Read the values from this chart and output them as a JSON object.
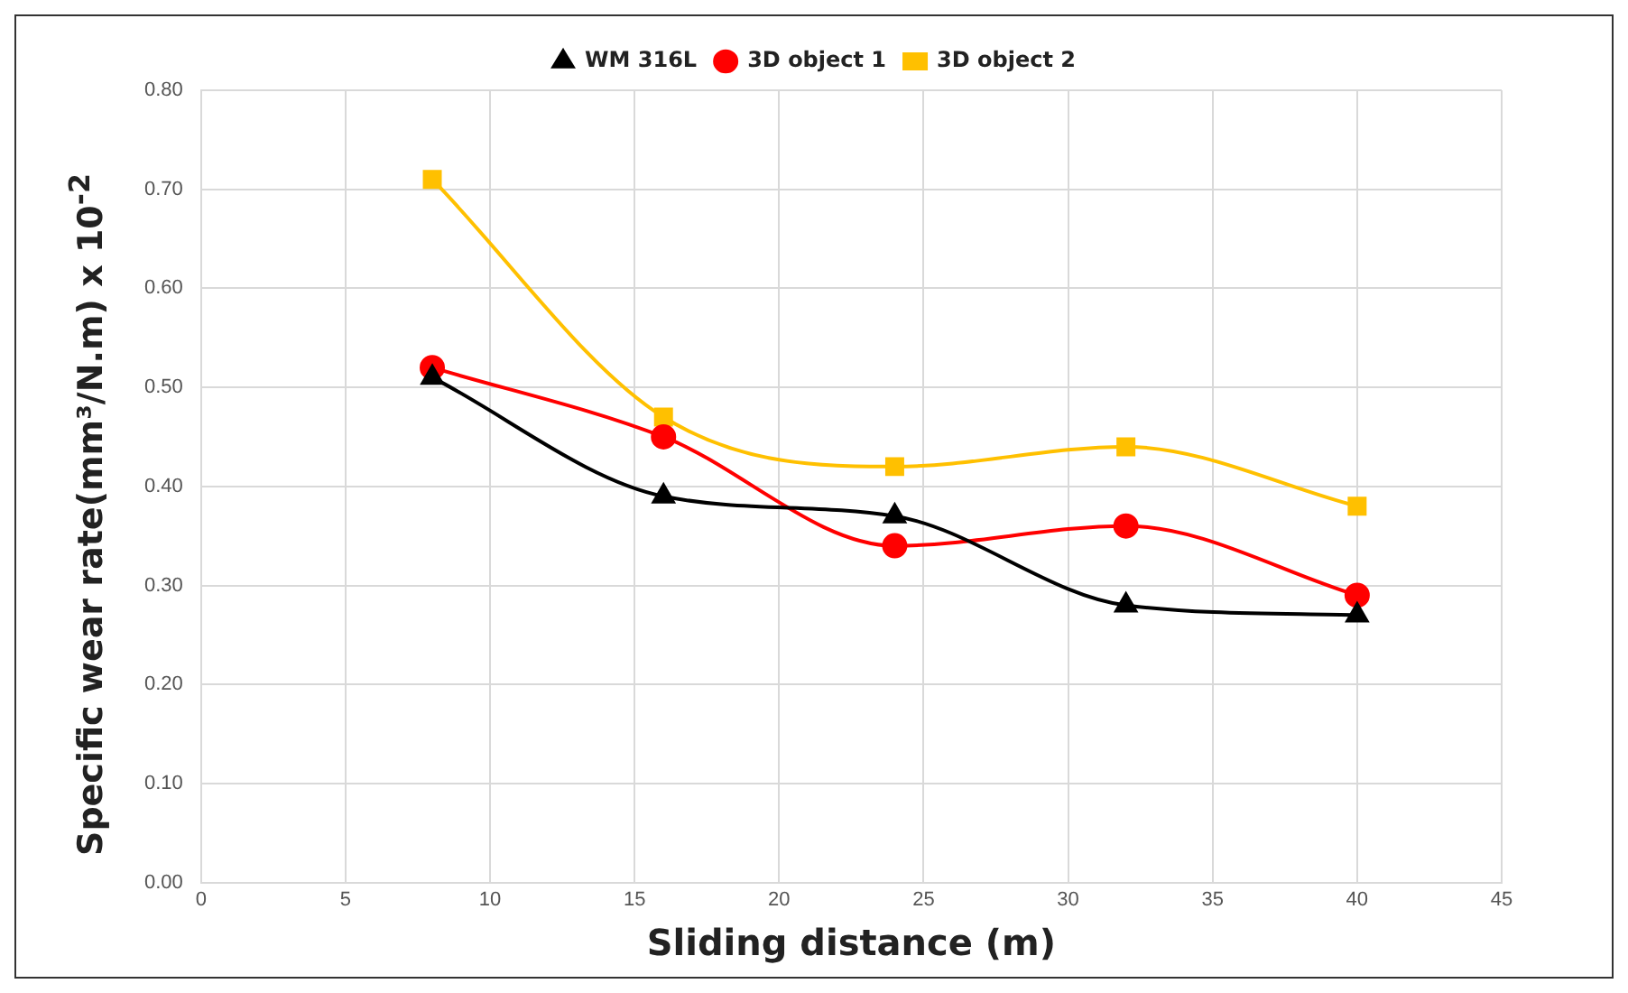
{
  "chart_data": {
    "type": "line",
    "xlabel": "Sliding distance (m)",
    "ylabel": "Specific wear rate(mm³/N.m) x 10$^{-2}$",
    "x": [
      8,
      16,
      24,
      32,
      40
    ],
    "series": [
      {
        "name": "WM 316L",
        "color": "#000000",
        "marker": "triangle",
        "values": [
          0.51,
          0.39,
          0.37,
          0.28,
          0.27
        ]
      },
      {
        "name": "3D object 1",
        "color": "#ff0000",
        "marker": "circle",
        "values": [
          0.52,
          0.45,
          0.34,
          0.36,
          0.29
        ]
      },
      {
        "name": "3D object 2",
        "color": "#ffc000",
        "marker": "square",
        "values": [
          0.71,
          0.47,
          0.42,
          0.44,
          0.38
        ]
      }
    ],
    "xlim": [
      0,
      45
    ],
    "xticks": [
      0,
      5,
      10,
      15,
      20,
      25,
      30,
      35,
      40,
      45
    ],
    "ylim": [
      0,
      0.8
    ],
    "yticks": [
      {
        "value": 0,
        "label": "0.00"
      },
      {
        "value": 0.1,
        "label": "0.10"
      },
      {
        "value": 0.2,
        "label": "0.20"
      },
      {
        "value": 0.3,
        "label": "0.30"
      },
      {
        "value": 0.4,
        "label": "0.40"
      },
      {
        "value": 0.5,
        "label": "0.50"
      },
      {
        "value": 0.6,
        "label": "0.60"
      },
      {
        "value": 0.7,
        "label": "0.70"
      },
      {
        "value": 0.8,
        "label": "0.80"
      }
    ],
    "grid": true,
    "legend": "top"
  }
}
